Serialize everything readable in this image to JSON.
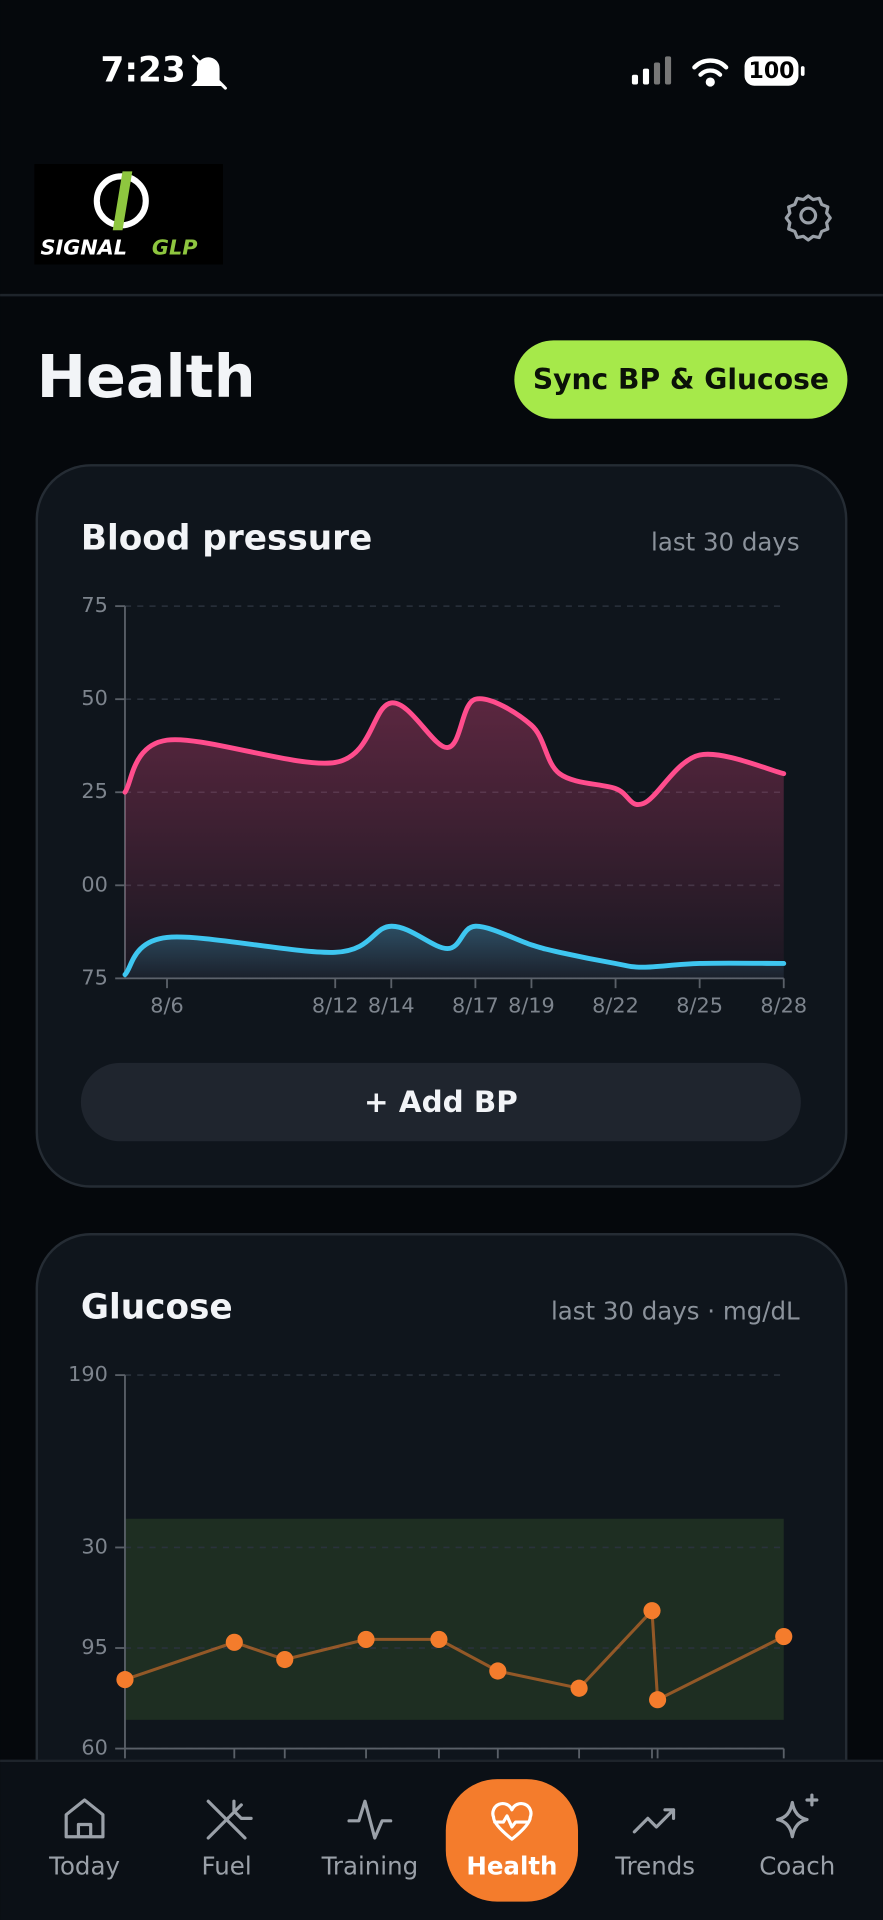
{
  "status_bar": {
    "time": "7:23",
    "battery": "100"
  },
  "header": {
    "logo": [
      "SIGNAL",
      "GLP"
    ]
  },
  "page": {
    "title": "Health",
    "sync_button": "Sync BP & Glucose"
  },
  "bp_card": {
    "add_button": "+ Add BP"
  },
  "chart_data": [
    {
      "type": "line",
      "title": "Blood pressure",
      "subtitle": "last 30 days",
      "x": [
        4.5,
        6,
        12,
        14,
        16,
        17,
        19,
        20,
        22,
        23,
        25,
        28
      ],
      "series": [
        {
          "color": "#ff4d8d",
          "values": [
            125,
            139,
            133,
            149,
            137,
            150,
            143,
            130,
            126,
            122,
            135,
            130
          ]
        },
        {
          "color": "#3ec6f0",
          "values": [
            76,
            86,
            82,
            89,
            83,
            89,
            84,
            82,
            79,
            78,
            79,
            79
          ]
        }
      ],
      "xlim": [
        4.5,
        28
      ],
      "xticks": [
        {
          "value": 6,
          "label": "8/6"
        },
        {
          "value": 12,
          "label": "8/12"
        },
        {
          "value": 14,
          "label": "8/14"
        },
        {
          "value": 17,
          "label": "8/17"
        },
        {
          "value": 19,
          "label": "8/19"
        },
        {
          "value": 22,
          "label": "8/22"
        },
        {
          "value": 25,
          "label": "8/25"
        },
        {
          "value": 28,
          "label": "8/28"
        }
      ],
      "ylim": [
        75,
        175
      ],
      "yticks": [
        {
          "value": 175,
          "label": "75"
        },
        {
          "value": 150,
          "label": "50"
        },
        {
          "value": 125,
          "label": "25"
        },
        {
          "value": 100,
          "label": "00"
        },
        75
      ],
      "grid": true,
      "area": true
    },
    {
      "type": "line",
      "title": "Glucose",
      "subtitle": "last 30 days · mg/dL",
      "x": [
        4.5,
        8.4,
        10.2,
        13.1,
        15.7,
        17.8,
        20.7,
        23.3,
        23.5,
        28
      ],
      "series": [
        {
          "color": "#f47c2c",
          "values": [
            84,
            97,
            91,
            98,
            98,
            87,
            81,
            108,
            77,
            99
          ]
        }
      ],
      "xlim": [
        4.5,
        28
      ],
      "ylim": [
        60,
        190
      ],
      "yticks": [
        190,
        {
          "value": 130,
          "label": "30"
        },
        95,
        60
      ],
      "target_range": [
        70,
        140
      ],
      "grid": true,
      "markers": true
    }
  ],
  "nav": [
    {
      "label": "Today"
    },
    {
      "label": "Fuel"
    },
    {
      "label": "Training"
    },
    {
      "label": "Health",
      "active": true
    },
    {
      "label": "Trends"
    },
    {
      "label": "Coach"
    }
  ]
}
